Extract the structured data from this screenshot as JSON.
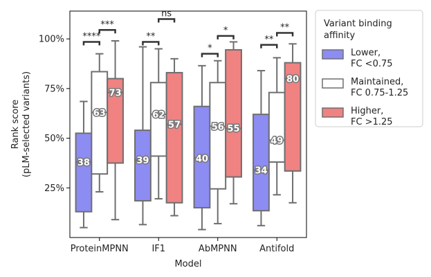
{
  "chart_data": {
    "type": "boxplot",
    "xlabel": "Model",
    "ylabel_lines": [
      "Rank score",
      "(pLM-selected variants)"
    ],
    "ylim": [
      0,
      1.14
    ],
    "yticks": [
      0.25,
      0.5,
      0.75,
      1.0
    ],
    "ytick_labels": [
      "25%",
      "50%",
      "75%",
      "100%"
    ],
    "categories": [
      "ProteinMPNN",
      "IF1",
      "AbMPNN",
      "Antifold"
    ],
    "series": [
      {
        "name": "Lower,\nFC <0.75",
        "color": "#8c8cf3",
        "boxes": [
          {
            "whislo": 0.05,
            "q1": 0.13,
            "med": 0.38,
            "q3": 0.525,
            "whishi": 0.685,
            "label": "38"
          },
          {
            "whislo": 0.065,
            "q1": 0.185,
            "med": 0.39,
            "q3": 0.54,
            "whishi": 0.96,
            "label": "39"
          },
          {
            "whislo": 0.04,
            "q1": 0.15,
            "med": 0.4,
            "q3": 0.66,
            "whishi": 0.865,
            "label": "40"
          },
          {
            "whislo": 0.06,
            "q1": 0.135,
            "med": 0.34,
            "q3": 0.62,
            "whishi": 0.84,
            "label": "34"
          }
        ]
      },
      {
        "name": "Maintained,\nFC 0.75-1.25",
        "color": "#ffffff",
        "boxes": [
          {
            "whislo": 0.23,
            "q1": 0.32,
            "med": 0.63,
            "q3": 0.835,
            "whishi": 0.925,
            "label": "63"
          },
          {
            "whislo": 0.195,
            "q1": 0.41,
            "med": 0.62,
            "q3": 0.78,
            "whishi": 0.95,
            "label": "62"
          },
          {
            "whislo": 0.07,
            "q1": 0.245,
            "med": 0.56,
            "q3": 0.78,
            "whishi": 0.89,
            "label": "56"
          },
          {
            "whislo": 0.215,
            "q1": 0.38,
            "med": 0.49,
            "q3": 0.73,
            "whishi": 0.905,
            "label": "49"
          }
        ]
      },
      {
        "name": "Higher,\nFC >1.25",
        "color": "#f08282",
        "boxes": [
          {
            "whislo": 0.09,
            "q1": 0.375,
            "med": 0.73,
            "q3": 0.8,
            "whishi": 0.99,
            "label": "73"
          },
          {
            "whislo": 0.11,
            "q1": 0.175,
            "med": 0.57,
            "q3": 0.83,
            "whishi": 0.9,
            "label": "57"
          },
          {
            "whislo": 0.17,
            "q1": 0.305,
            "med": 0.55,
            "q3": 0.945,
            "whishi": 0.985,
            "label": "55"
          },
          {
            "whislo": 0.175,
            "q1": 0.335,
            "med": 0.8,
            "q3": 0.88,
            "whishi": 0.975,
            "label": "80"
          }
        ]
      }
    ],
    "significance": [
      {
        "category": 0,
        "from": 1,
        "to": 2,
        "y": 1.045,
        "label": "***"
      },
      {
        "category": 0,
        "from": 0,
        "to": 1,
        "y": 0.985,
        "label": "****"
      },
      {
        "category": 1,
        "from": 1,
        "to": 2,
        "y": 1.1,
        "label": "ns"
      },
      {
        "category": 1,
        "from": 0,
        "to": 1,
        "y": 0.985,
        "label": "**"
      },
      {
        "category": 2,
        "from": 1,
        "to": 2,
        "y": 1.015,
        "label": "*"
      },
      {
        "category": 2,
        "from": 0,
        "to": 1,
        "y": 0.925,
        "label": "*"
      },
      {
        "category": 3,
        "from": 1,
        "to": 2,
        "y": 1.03,
        "label": "**"
      },
      {
        "category": 3,
        "from": 0,
        "to": 1,
        "y": 0.97,
        "label": "**"
      }
    ],
    "legend": {
      "title_lines": [
        "Variant binding",
        "affinity"
      ],
      "placement": "outside-right"
    }
  }
}
